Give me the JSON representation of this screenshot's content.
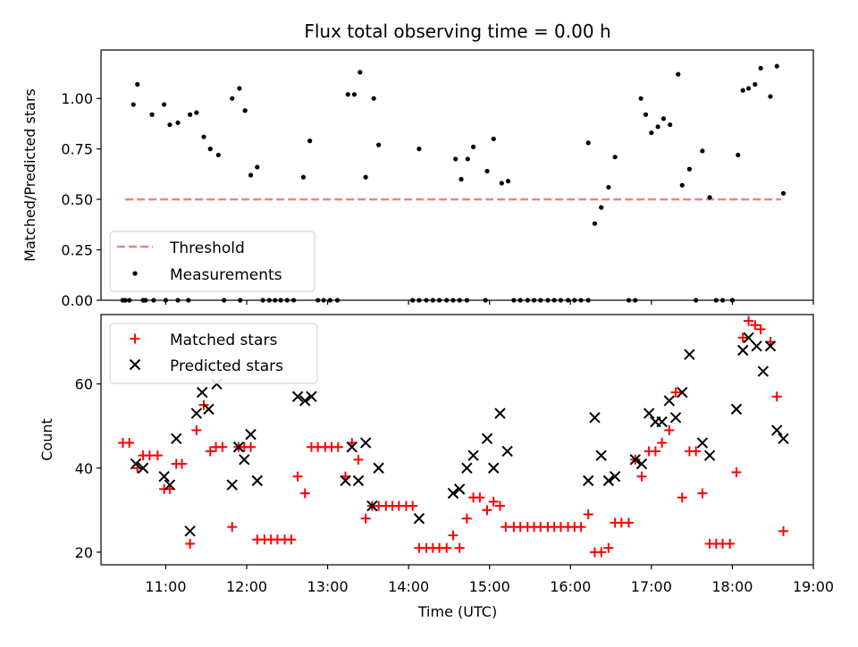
{
  "chart_data": [
    {
      "type": "scatter",
      "title": "Flux total observing time = 0.00 h",
      "xlabel": "",
      "ylabel": "Matched/Predicted stars",
      "ylim": [
        0,
        1.24
      ],
      "yticks": [
        "0.00",
        "0.25",
        "0.50",
        "0.75",
        "1.00"
      ],
      "yticks_values": [
        0,
        0.25,
        0.5,
        0.75,
        1.0
      ],
      "legend_placement": "lower-left",
      "threshold": {
        "name": "Threshold",
        "value": 0.5,
        "x": [
          10.5,
          18.6
        ],
        "color": "#f08080"
      },
      "series": [
        {
          "name": "Measurements",
          "color": "#000000",
          "marker": "dot",
          "x": [
            10.5,
            10.6,
            10.65,
            10.72,
            10.83,
            10.98,
            11.05,
            11.15,
            11.3,
            11.38,
            11.47,
            11.55,
            11.65,
            11.82,
            11.91,
            11.98,
            12.05,
            12.13,
            12.7,
            12.78,
            13.25,
            13.33,
            13.4,
            13.47,
            13.57,
            13.63,
            14.13,
            14.58,
            14.65,
            14.73,
            14.8,
            14.97,
            15.05,
            15.15,
            15.23,
            16.22,
            16.3,
            16.38,
            16.47,
            16.55,
            16.87,
            16.93,
            17.0,
            17.08,
            17.15,
            17.23,
            17.33,
            17.38,
            17.47,
            17.63,
            17.72,
            18.07,
            18.13,
            18.2,
            18.28,
            18.35,
            18.47,
            18.55,
            18.63,
            10.47,
            10.55,
            10.75,
            10.85,
            11.0,
            11.15,
            11.28,
            11.72,
            11.92,
            12.2,
            12.28,
            12.35,
            12.42,
            12.5,
            12.58,
            12.88,
            12.95,
            13.03,
            13.12,
            14.05,
            14.13,
            14.22,
            14.3,
            14.38,
            14.47,
            14.55,
            14.63,
            14.72,
            14.95,
            15.3,
            15.38,
            15.47,
            15.55,
            15.63,
            15.72,
            15.8,
            15.88,
            15.97,
            16.05,
            16.13,
            16.22,
            16.72,
            16.8,
            17.55,
            17.8,
            17.88,
            18.0
          ],
          "y": [
            0.0,
            0.97,
            1.07,
            0.0,
            0.92,
            0.97,
            0.87,
            0.88,
            0.92,
            0.93,
            0.81,
            0.75,
            0.72,
            1.0,
            1.05,
            0.94,
            0.62,
            0.66,
            0.61,
            0.79,
            1.02,
            1.02,
            1.13,
            0.61,
            1.0,
            0.77,
            0.75,
            0.7,
            0.6,
            0.7,
            0.76,
            0.64,
            0.8,
            0.58,
            0.59,
            0.78,
            0.38,
            0.46,
            0.56,
            0.71,
            1.0,
            0.92,
            0.83,
            0.86,
            0.9,
            0.87,
            1.12,
            0.57,
            0.65,
            0.74,
            0.51,
            0.72,
            1.04,
            1.05,
            1.07,
            1.15,
            1.01,
            1.16,
            0.53,
            0.0,
            0.0,
            0.0,
            0.0,
            0.0,
            0.0,
            0.0,
            0.0,
            0.0,
            0.0,
            0.0,
            0.0,
            0.0,
            0.0,
            0.0,
            0.0,
            0.0,
            0.0,
            0.0,
            0.0,
            0.0,
            0.0,
            0.0,
            0.0,
            0.0,
            0.0,
            0.0,
            0.0,
            0.0,
            0.0,
            0.0,
            0.0,
            0.0,
            0.0,
            0.0,
            0.0,
            0.0,
            0.0,
            0.0,
            0.0,
            0.0,
            0.0,
            0.0,
            0.0,
            0.0,
            0.0,
            0.0
          ]
        }
      ]
    },
    {
      "type": "scatter",
      "title": "",
      "xlabel": "Time (UTC)",
      "ylabel": "Count",
      "ylim": [
        17,
        76.5
      ],
      "yticks": [
        "20",
        "40",
        "60"
      ],
      "yticks_values": [
        20,
        40,
        60
      ],
      "xlim": [
        10.2,
        19.0
      ],
      "xticks": [
        "11:00",
        "12:00",
        "13:00",
        "14:00",
        "15:00",
        "16:00",
        "17:00",
        "18:00",
        "19:00"
      ],
      "xticks_values": [
        11,
        12,
        13,
        14,
        15,
        16,
        17,
        18,
        19
      ],
      "legend_placement": "upper-left",
      "series": [
        {
          "name": "Matched stars",
          "color": "#ff0000",
          "marker": "plus",
          "x": [
            10.47,
            10.55,
            10.65,
            10.72,
            10.8,
            10.9,
            10.98,
            11.05,
            11.13,
            11.2,
            11.3,
            11.38,
            11.47,
            11.55,
            11.62,
            11.7,
            11.82,
            11.9,
            11.97,
            12.05,
            12.13,
            12.22,
            12.3,
            12.38,
            12.47,
            12.55,
            12.63,
            12.72,
            12.8,
            12.88,
            12.97,
            13.05,
            13.13,
            13.22,
            13.3,
            13.38,
            13.47,
            13.55,
            13.63,
            13.72,
            13.8,
            13.88,
            13.97,
            14.05,
            14.13,
            14.22,
            14.3,
            14.38,
            14.47,
            14.55,
            14.63,
            14.72,
            14.8,
            14.88,
            14.97,
            15.05,
            15.13,
            15.2,
            15.3,
            15.38,
            15.47,
            15.55,
            15.63,
            15.72,
            15.8,
            15.88,
            15.97,
            16.05,
            16.13,
            16.22,
            16.3,
            16.38,
            16.47,
            16.55,
            16.63,
            16.72,
            16.8,
            16.88,
            16.97,
            17.05,
            17.13,
            17.22,
            17.3,
            17.38,
            17.47,
            17.55,
            17.63,
            17.72,
            17.8,
            17.88,
            17.97,
            18.05,
            18.13,
            18.2,
            18.28,
            18.35,
            18.47,
            18.55,
            18.63
          ],
          "y": [
            46,
            46,
            40,
            43,
            43,
            43,
            35,
            35,
            41,
            41,
            22,
            49,
            55,
            44,
            45,
            45,
            26,
            45,
            45,
            45,
            23,
            23,
            23,
            23,
            23,
            23,
            38,
            34,
            45,
            45,
            45,
            45,
            45,
            38,
            46,
            42,
            28,
            31,
            31,
            31,
            31,
            31,
            31,
            31,
            21,
            21,
            21,
            21,
            21,
            24,
            21,
            28,
            33,
            33,
            30,
            32,
            31,
            26,
            26,
            26,
            26,
            26,
            26,
            26,
            26,
            26,
            26,
            26,
            26,
            29,
            20,
            20,
            21,
            27,
            27,
            27,
            42,
            38,
            44,
            44,
            46,
            49,
            58,
            33,
            44,
            44,
            34,
            22,
            22,
            22,
            22,
            39,
            71,
            75,
            74,
            73,
            70,
            57,
            25
          ]
        },
        {
          "name": "Predicted stars",
          "color": "#000000",
          "marker": "x",
          "x": [
            10.63,
            10.72,
            10.98,
            11.05,
            11.13,
            11.3,
            11.38,
            11.45,
            11.53,
            11.63,
            11.82,
            11.9,
            11.97,
            12.05,
            12.13,
            12.63,
            12.72,
            12.8,
            13.22,
            13.3,
            13.38,
            13.47,
            13.55,
            13.63,
            14.13,
            14.55,
            14.63,
            14.72,
            14.8,
            14.97,
            15.05,
            15.13,
            15.22,
            16.22,
            16.3,
            16.38,
            16.47,
            16.55,
            16.8,
            16.88,
            16.97,
            17.05,
            17.13,
            17.22,
            17.3,
            17.38,
            17.47,
            17.63,
            17.72,
            18.05,
            18.13,
            18.2,
            18.3,
            18.38,
            18.47,
            18.55,
            18.63
          ],
          "y": [
            41,
            40,
            38,
            36,
            47,
            25,
            53,
            58,
            54,
            60,
            36,
            45,
            42,
            48,
            37,
            57,
            56,
            57,
            37,
            45,
            37,
            46,
            31,
            40,
            28,
            34,
            35,
            40,
            43,
            47,
            40,
            53,
            44,
            37,
            52,
            43,
            37,
            38,
            42,
            41,
            53,
            51,
            51,
            56,
            52,
            58,
            67,
            46,
            43,
            54,
            68,
            71,
            69,
            63,
            69,
            49,
            47
          ]
        }
      ]
    }
  ]
}
